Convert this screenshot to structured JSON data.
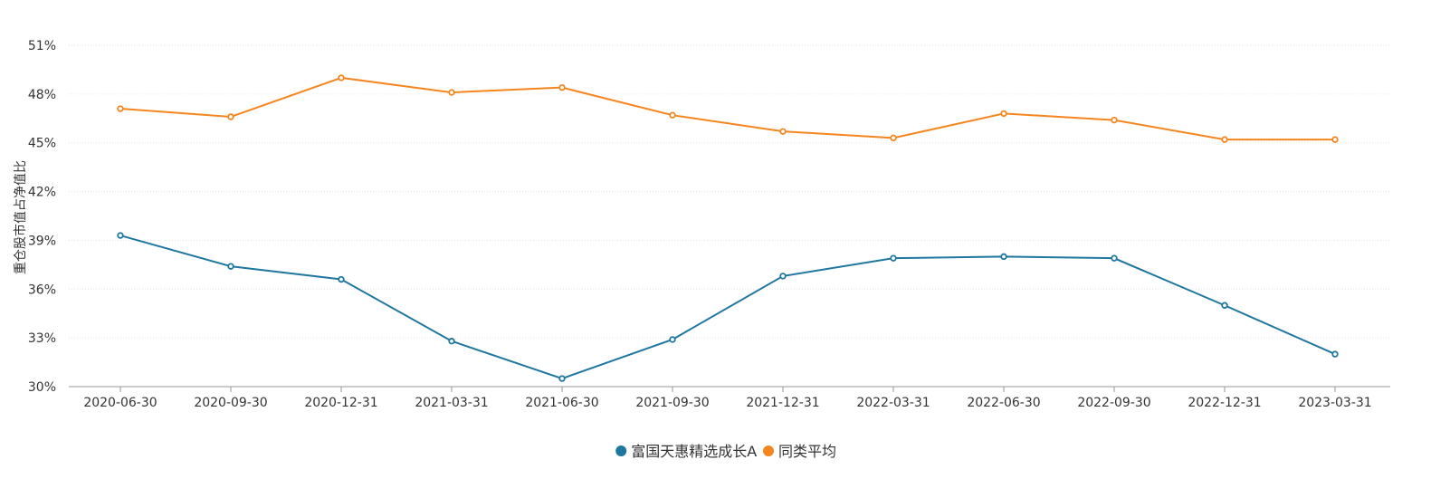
{
  "chart_data": {
    "type": "line",
    "ylabel": "重仓股市值占净值比",
    "categories": [
      "2020-06-30",
      "2020-09-30",
      "2020-12-31",
      "2021-03-31",
      "2021-06-30",
      "2021-09-30",
      "2021-12-31",
      "2022-03-31",
      "2022-06-30",
      "2022-09-30",
      "2022-12-31",
      "2023-03-31"
    ],
    "y_ticks": [
      30,
      33,
      36,
      39,
      42,
      45,
      48,
      51
    ],
    "y_tick_suffix": "%",
    "ylim": [
      30,
      51
    ],
    "grid": true,
    "legend_position": "bottom-center",
    "series": [
      {
        "name": "富国天惠精选成长A",
        "color": "#1f77a0",
        "values": [
          39.3,
          37.4,
          36.6,
          32.8,
          30.5,
          32.9,
          36.8,
          37.9,
          38.0,
          37.9,
          35.0,
          32.0
        ]
      },
      {
        "name": "同类平均",
        "color": "#f5861f",
        "values": [
          47.1,
          46.6,
          49.0,
          48.1,
          48.4,
          46.7,
          45.7,
          45.3,
          46.8,
          46.4,
          45.2,
          45.2
        ]
      }
    ]
  }
}
